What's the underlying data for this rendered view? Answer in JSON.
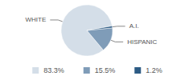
{
  "chart_data": {
    "type": "pie",
    "categories": [
      "WHITE",
      "HISPANIC",
      "A.I."
    ],
    "values": [
      83.3,
      15.5,
      1.2
    ],
    "value_labels": [
      "83.3%",
      "15.5%",
      "1.2%"
    ],
    "colors": [
      "#d4dee8",
      "#7f9cb8",
      "#2d5b84"
    ],
    "legend": "bottom"
  }
}
